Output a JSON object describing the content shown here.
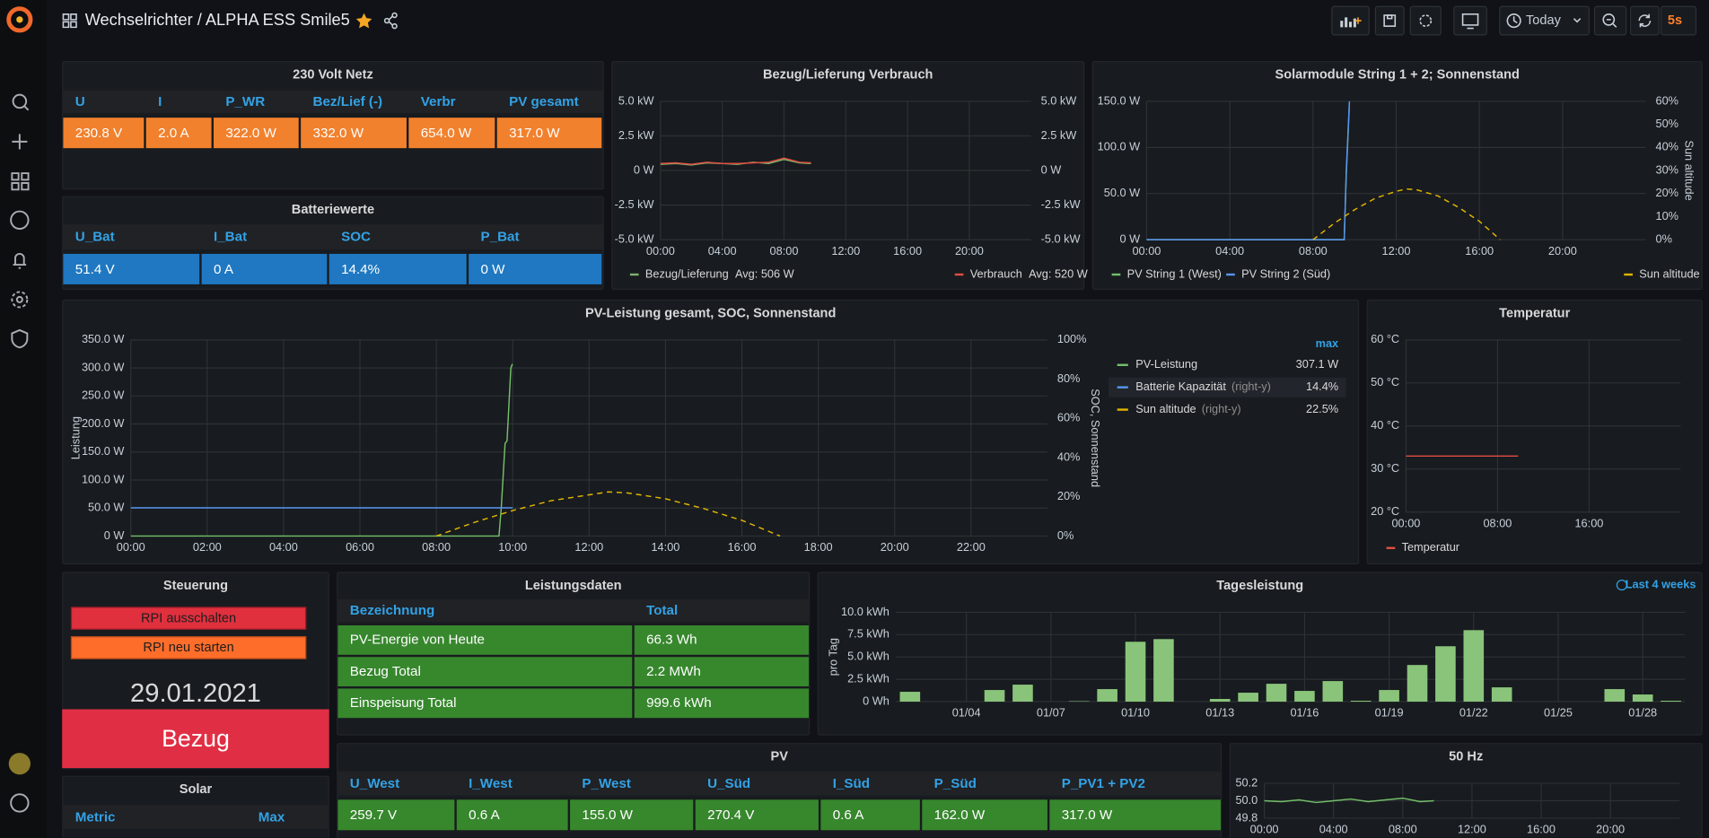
{
  "header": {
    "title": "Wechselrichter / ALPHA ESS Smile5",
    "time_range": "Today",
    "refresh": "5s"
  },
  "netz": {
    "title": "230 Volt Netz",
    "columns": [
      "U",
      "I",
      "P_WR",
      "Bez/Lief (-)",
      "Verbr",
      "PV gesamt"
    ],
    "rows": [
      [
        "230.8 V",
        "2.0 A",
        "322.0 W",
        "332.0 W",
        "654.0 W",
        "317.0 W"
      ]
    ]
  },
  "batterie": {
    "title": "Batteriewerte",
    "columns": [
      "U_Bat",
      "I_Bat",
      "SOC",
      "P_Bat"
    ],
    "rows": [
      [
        "51.4 V",
        "0 A",
        "14.4%",
        "0 W"
      ]
    ]
  },
  "bezug_chart": {
    "type": "line",
    "title": "Bezug/Lieferung Verbrauch",
    "grid": true,
    "xlim": [
      0,
      24
    ],
    "xticks": [
      {
        "value": 0,
        "label": "00:00"
      },
      {
        "value": 4,
        "label": "04:00"
      },
      {
        "value": 8,
        "label": "08:00"
      },
      {
        "value": 12,
        "label": "12:00"
      },
      {
        "value": 16,
        "label": "16:00"
      },
      {
        "value": 20,
        "label": "20:00"
      }
    ],
    "ylim": [
      -5,
      5
    ],
    "yticks": [
      {
        "value": -5,
        "label": "-5.0 kW"
      },
      {
        "value": -2.5,
        "label": "-2.5 kW"
      },
      {
        "value": 0,
        "label": "0 W"
      },
      {
        "value": 2.5,
        "label": "2.5 kW"
      },
      {
        "value": 5,
        "label": "5.0 kW"
      }
    ],
    "y2lim": [
      -5,
      5
    ],
    "y2ticks": [
      {
        "value": -5,
        "label": "-5.0 kW"
      },
      {
        "value": -2.5,
        "label": "-2.5 kW"
      },
      {
        "value": 0,
        "label": "0 W"
      },
      {
        "value": 2.5,
        "label": "2.5 kW"
      },
      {
        "value": 5,
        "label": "5.0 kW"
      }
    ],
    "series": [
      {
        "name": "Bezug/Lieferung",
        "color": "#7eb26d",
        "legend_value": "Avg: 506 W",
        "x": [
          0,
          1,
          2,
          3,
          4,
          5,
          6,
          7,
          8,
          9,
          9.75
        ],
        "values": [
          0.45,
          0.5,
          0.4,
          0.55,
          0.5,
          0.45,
          0.6,
          0.5,
          0.8,
          0.55,
          0.5
        ]
      },
      {
        "name": "Verbrauch",
        "color": "#e24d42",
        "legend_value": "Avg: 520 W",
        "x": [
          0,
          1,
          2,
          3,
          4,
          5,
          6,
          7,
          8,
          9,
          9.75
        ],
        "values": [
          0.5,
          0.55,
          0.45,
          0.6,
          0.5,
          0.5,
          0.55,
          0.6,
          0.9,
          0.6,
          0.55
        ]
      }
    ]
  },
  "solar_chart": {
    "type": "line",
    "title": "Solarmodule String 1 + 2; Sonnenstand",
    "grid": true,
    "y2label": "Sun altitude",
    "xlim": [
      0,
      24
    ],
    "xticks": [
      {
        "value": 0,
        "label": "00:00"
      },
      {
        "value": 4,
        "label": "04:00"
      },
      {
        "value": 8,
        "label": "08:00"
      },
      {
        "value": 12,
        "label": "12:00"
      },
      {
        "value": 16,
        "label": "16:00"
      },
      {
        "value": 20,
        "label": "20:00"
      }
    ],
    "ylim": [
      0,
      150
    ],
    "yticks": [
      {
        "value": 0,
        "label": "0 W"
      },
      {
        "value": 50,
        "label": "50.0 W"
      },
      {
        "value": 100,
        "label": "100.0 W"
      },
      {
        "value": 150,
        "label": "150.0 W"
      }
    ],
    "y2lim": [
      0,
      60
    ],
    "y2ticks": [
      {
        "value": 0,
        "label": "0%"
      },
      {
        "value": 10,
        "label": "10%"
      },
      {
        "value": 20,
        "label": "20%"
      },
      {
        "value": 30,
        "label": "30%"
      },
      {
        "value": 40,
        "label": "40%"
      },
      {
        "value": 50,
        "label": "50%"
      },
      {
        "value": 60,
        "label": "60%"
      }
    ],
    "series": [
      {
        "name": "PV String 1 (West)",
        "color": "#73bf69",
        "x": [
          0,
          9.5,
          9.6,
          9.75
        ],
        "values": [
          0,
          0,
          70,
          148
        ]
      },
      {
        "name": "PV String 2 (Süd)",
        "color": "#5794f2",
        "x": [
          0,
          9.5,
          9.6,
          9.75
        ],
        "values": [
          0,
          0,
          75,
          150
        ]
      },
      {
        "name": "Sun altitude",
        "color": "#e0b400",
        "axis": "y2",
        "dash": true,
        "x": [
          8,
          9,
          10,
          11,
          12,
          12.5,
          13,
          14,
          15,
          16,
          17
        ],
        "values": [
          0,
          7,
          13,
          18,
          21,
          22,
          21.6,
          19,
          14,
          8,
          0
        ]
      }
    ]
  },
  "main_chart": {
    "type": "line",
    "title": "PV-Leistung gesamt, SOC, Sonnenstand",
    "grid": true,
    "ylabel": "Leistung",
    "y2label": "SOC, Sonnenstand",
    "legend_header": "max",
    "xlim": [
      0,
      24
    ],
    "xticks": [
      {
        "value": 0,
        "label": "00:00"
      },
      {
        "value": 2,
        "label": "02:00"
      },
      {
        "value": 4,
        "label": "04:00"
      },
      {
        "value": 6,
        "label": "06:00"
      },
      {
        "value": 8,
        "label": "08:00"
      },
      {
        "value": 10,
        "label": "10:00"
      },
      {
        "value": 12,
        "label": "12:00"
      },
      {
        "value": 14,
        "label": "14:00"
      },
      {
        "value": 16,
        "label": "16:00"
      },
      {
        "value": 18,
        "label": "18:00"
      },
      {
        "value": 20,
        "label": "20:00"
      },
      {
        "value": 22,
        "label": "22:00"
      }
    ],
    "ylim": [
      0,
      350
    ],
    "yticks": [
      {
        "value": 0,
        "label": "0 W"
      },
      {
        "value": 50,
        "label": "50.0 W"
      },
      {
        "value": 100,
        "label": "100.0 W"
      },
      {
        "value": 150,
        "label": "150.0 W"
      },
      {
        "value": 200,
        "label": "200.0 W"
      },
      {
        "value": 250,
        "label": "250.0 W"
      },
      {
        "value": 300,
        "label": "300.0 W"
      },
      {
        "value": 350,
        "label": "350.0 W"
      }
    ],
    "y2lim": [
      0,
      100
    ],
    "y2ticks": [
      {
        "value": 0,
        "label": "0%"
      },
      {
        "value": 20,
        "label": "20%"
      },
      {
        "value": 40,
        "label": "40%"
      },
      {
        "value": 60,
        "label": "60%"
      },
      {
        "value": 80,
        "label": "80%"
      },
      {
        "value": 100,
        "label": "100%"
      }
    ],
    "series": [
      {
        "name": "PV-Leistung",
        "color": "#73bf69",
        "legend_value": "307.1 W",
        "x": [
          0,
          9.64,
          9.7,
          9.8,
          9.85,
          9.95,
          9.99
        ],
        "values": [
          0,
          0,
          50,
          165,
          170,
          300,
          307.1
        ]
      },
      {
        "name": "Batterie Kapazität",
        "color": "#5794f2",
        "axis": "y2",
        "legend_note": "(right-y)",
        "legend_value": "14.4%",
        "x": [
          0,
          10
        ],
        "values": [
          14.4,
          14.4
        ]
      },
      {
        "name": "Sun altitude",
        "color": "#e0b400",
        "axis": "y2",
        "dash": true,
        "legend_note": "(right-y)",
        "legend_value": "22.5%",
        "x": [
          8,
          9,
          10,
          11,
          12,
          12.5,
          13,
          14,
          15,
          16,
          17
        ],
        "values": [
          0,
          7,
          13,
          18,
          21,
          22.5,
          22,
          19,
          14,
          8,
          0
        ]
      }
    ]
  },
  "temp_chart": {
    "type": "line",
    "title": "Temperatur",
    "grid": true,
    "xlim": [
      0,
      24
    ],
    "xticks": [
      {
        "value": 0,
        "label": "00:00"
      },
      {
        "value": 8,
        "label": "08:00"
      },
      {
        "value": 16,
        "label": "16:00"
      }
    ],
    "ylim": [
      20,
      60
    ],
    "yticks": [
      {
        "value": 20,
        "label": "20 °C"
      },
      {
        "value": 30,
        "label": "30 °C"
      },
      {
        "value": 40,
        "label": "40 °C"
      },
      {
        "value": 50,
        "label": "50 °C"
      },
      {
        "value": 60,
        "label": "60 °C"
      }
    ],
    "series": [
      {
        "name": "Temperatur",
        "color": "#e24d42",
        "x": [
          0,
          9.8
        ],
        "values": [
          33,
          33
        ]
      }
    ]
  },
  "steuerung": {
    "title": "Steuerung",
    "buttons": [
      "RPI ausschalten",
      "RPI neu starten"
    ],
    "date": "29.01.2021",
    "status": "Bezug"
  },
  "leistungsdaten": {
    "title": "Leistungsdaten",
    "columns": [
      "Bezeichnung",
      "Total"
    ],
    "rows": [
      [
        "PV-Energie von Heute",
        "66.3 Wh"
      ],
      [
        "Bezug Total",
        "2.2 MWh"
      ],
      [
        "Einspeisung Total",
        "999.6 kWh"
      ]
    ]
  },
  "tages_chart": {
    "type": "bar",
    "title": "Tagesleistung",
    "time_range": "Last 4 weeks",
    "ylabel": "pro Tag",
    "color": "#89c47a",
    "grid": true,
    "categories": [
      null,
      null,
      "01/04",
      null,
      null,
      "01/07",
      null,
      null,
      "01/10",
      null,
      null,
      "01/13",
      null,
      null,
      "01/16",
      null,
      null,
      "01/19",
      null,
      null,
      "01/22",
      null,
      null,
      "01/25",
      null,
      null,
      "01/28",
      null
    ],
    "values": [
      1.1,
      0,
      0,
      1.3,
      1.9,
      0,
      0.05,
      1.4,
      6.7,
      7.0,
      0,
      0.3,
      1.0,
      2.0,
      1.2,
      2.3,
      0.1,
      1.3,
      4.1,
      6.2,
      8.0,
      1.6,
      0,
      0,
      0,
      1.4,
      0.8,
      0.1
    ],
    "ylim": [
      0,
      10
    ],
    "yticks": [
      {
        "value": 0,
        "label": "0 Wh"
      },
      {
        "value": 2.5,
        "label": "2.5 kWh"
      },
      {
        "value": 5,
        "label": "5.0 kWh"
      },
      {
        "value": 7.5,
        "label": "7.5 kWh"
      },
      {
        "value": 10,
        "label": "10.0 kWh"
      }
    ]
  },
  "solar_table": {
    "title": "Solar",
    "columns": [
      "Metric",
      "Max"
    ]
  },
  "pv": {
    "title": "PV",
    "columns": [
      "U_West",
      "I_West",
      "P_West",
      "U_Süd",
      "I_Süd",
      "P_Süd",
      "P_PV1 + PV2"
    ],
    "rows": [
      [
        "259.7 V",
        "0.6 A",
        "155.0 W",
        "270.4 V",
        "0.6 A",
        "162.0 W",
        "317.0 W"
      ]
    ]
  },
  "hz_chart": {
    "type": "line",
    "title": "50 Hz",
    "grid": true,
    "xlim": [
      0,
      24
    ],
    "xticks": [
      {
        "value": 0,
        "label": "00:00"
      },
      {
        "value": 4,
        "label": "04:00"
      },
      {
        "value": 8,
        "label": "08:00"
      },
      {
        "value": 12,
        "label": "12:00"
      },
      {
        "value": 16,
        "label": "16:00"
      },
      {
        "value": 20,
        "label": "20:00"
      }
    ],
    "ylim": [
      49.8,
      50.2
    ],
    "yticks": [
      49.8,
      {
        "value": 50,
        "label": "50.0"
      },
      50.2
    ],
    "series": [
      {
        "name": "50 Hz",
        "color": "#73bf69",
        "x": [
          0,
          1,
          2,
          3,
          4,
          5,
          6,
          7,
          8,
          9,
          9.8
        ],
        "values": [
          50.0,
          49.99,
          50.01,
          49.98,
          50.0,
          50.02,
          49.99,
          50.01,
          50.03,
          49.99,
          50.0
        ]
      }
    ]
  }
}
